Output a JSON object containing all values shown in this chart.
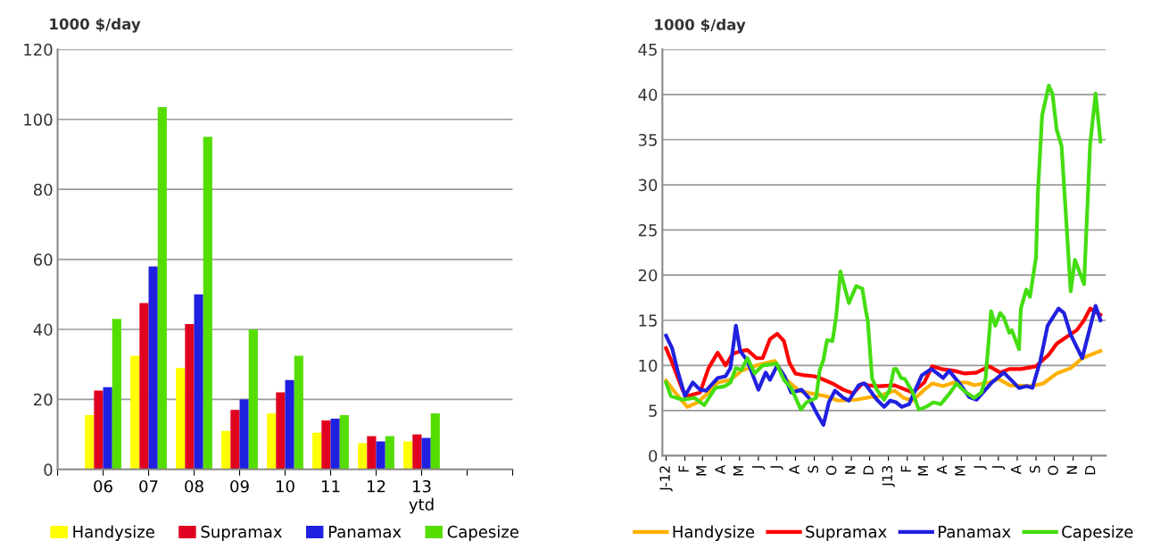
{
  "chart_data": [
    {
      "type": "bar",
      "ylabel": "1000 $/day",
      "categories": [
        "06",
        "07",
        "08",
        "09",
        "10",
        "11",
        "12",
        "13\nytd"
      ],
      "ylim": [
        0,
        120
      ],
      "yticks": [
        0,
        20,
        40,
        60,
        80,
        100,
        120
      ],
      "grid": "y",
      "legend": "bottom",
      "series": [
        {
          "name": "Handysize",
          "color": "#ffff00",
          "values": [
            15.5,
            32.5,
            29,
            11,
            16,
            10.5,
            7.5,
            8
          ]
        },
        {
          "name": "Supramax",
          "color": "#e00020",
          "values": [
            22.5,
            47.5,
            41.5,
            17,
            22,
            14,
            9.5,
            10
          ]
        },
        {
          "name": "Panamax",
          "color": "#2020e0",
          "values": [
            23.5,
            58,
            50,
            20,
            25.5,
            14.5,
            8,
            9
          ]
        },
        {
          "name": "Capesize",
          "color": "#55dd00",
          "values": [
            43,
            103.5,
            95,
            40,
            32.5,
            15.5,
            9.5,
            16
          ]
        }
      ]
    },
    {
      "type": "line",
      "ylabel": "1000 $/day",
      "xlim": [
        "2011-12-26",
        "2013-12-25"
      ],
      "xticks": [
        {
          "value": "2012-01",
          "label": "J-12"
        },
        {
          "value": "2012-02",
          "label": "F"
        },
        {
          "value": "2012-03",
          "label": "M"
        },
        {
          "value": "2012-04",
          "label": "A"
        },
        {
          "value": "2012-05",
          "label": "M"
        },
        {
          "value": "2012-06",
          "label": "J"
        },
        {
          "value": "2012-07",
          "label": "J"
        },
        {
          "value": "2012-08",
          "label": "A"
        },
        {
          "value": "2012-09",
          "label": "S"
        },
        {
          "value": "2012-10",
          "label": "O"
        },
        {
          "value": "2012-11",
          "label": "N"
        },
        {
          "value": "2012-12",
          "label": "D"
        },
        {
          "value": "2013-01",
          "label": "J13"
        },
        {
          "value": "2013-02",
          "label": "F"
        },
        {
          "value": "2013-03",
          "label": "M"
        },
        {
          "value": "2013-04",
          "label": "A"
        },
        {
          "value": "2013-05",
          "label": "M"
        },
        {
          "value": "2013-06",
          "label": "J"
        },
        {
          "value": "2013-07",
          "label": "J"
        },
        {
          "value": "2013-08",
          "label": "A"
        },
        {
          "value": "2013-09",
          "label": "S"
        },
        {
          "value": "2013-10",
          "label": "O"
        },
        {
          "value": "2013-11",
          "label": "N"
        },
        {
          "value": "2013-12",
          "label": "D"
        }
      ],
      "ylim": [
        0,
        45
      ],
      "yticks": [
        0,
        5,
        10,
        15,
        20,
        25,
        30,
        35,
        40,
        45
      ],
      "grid": "y",
      "legend": "bottom",
      "line_style": "solid",
      "series": [
        {
          "name": "Handysize",
          "color": "#ffb000",
          "x": [
            "2012-01-01",
            "2012-01-16",
            "2012-02-05",
            "2012-02-22",
            "2012-03-11",
            "2012-03-26",
            "2012-04-16",
            "2012-05-04",
            "2012-05-29",
            "2012-06-28",
            "2012-07-17",
            "2012-08-07",
            "2012-08-26",
            "2012-09-20",
            "2012-10-10",
            "2012-11-09",
            "2012-12-03",
            "2012-12-13",
            "2013-01-11",
            "2013-01-26",
            "2013-02-10",
            "2013-03-01",
            "2013-03-14",
            "2013-04-01",
            "2013-04-19",
            "2013-05-10",
            "2013-05-22",
            "2013-06-16",
            "2013-07-01",
            "2013-07-20",
            "2013-08-25",
            "2013-09-13",
            "2013-10-05",
            "2013-10-28",
            "2013-11-16",
            "2013-12-16"
          ],
          "values": [
            8.3,
            7.0,
            5.4,
            5.9,
            7.0,
            8.1,
            8.4,
            9.4,
            10.0,
            10.5,
            8.4,
            7.2,
            6.9,
            6.6,
            6.1,
            6.2,
            6.5,
            6.5,
            7.2,
            6.4,
            6.1,
            7.3,
            8.0,
            7.7,
            8.1,
            8.1,
            7.8,
            8.1,
            8.5,
            7.8,
            7.7,
            8.0,
            9.1,
            9.7,
            10.8,
            11.6
          ]
        },
        {
          "name": "Supramax",
          "color": "#ff0000",
          "x": [
            "2012-01-01",
            "2012-01-11",
            "2012-01-28",
            "2012-02-05",
            "2012-02-26",
            "2012-03-11",
            "2012-03-26",
            "2012-04-08",
            "2012-04-20",
            "2012-05-04",
            "2012-05-14",
            "2012-05-29",
            "2012-06-08",
            "2012-06-20",
            "2012-07-02",
            "2012-07-13",
            "2012-07-22",
            "2012-08-01",
            "2012-08-16",
            "2012-09-01",
            "2012-09-10",
            "2012-10-01",
            "2012-10-19",
            "2012-11-04",
            "2012-11-19",
            "2012-11-28",
            "2012-12-17",
            "2013-01-11",
            "2013-02-10",
            "2013-03-01",
            "2013-03-14",
            "2013-03-29",
            "2013-04-19",
            "2013-05-07",
            "2013-05-26",
            "2013-06-16",
            "2013-07-04",
            "2013-07-19",
            "2013-08-07",
            "2013-09-01",
            "2013-09-22",
            "2013-10-05",
            "2013-10-20",
            "2013-11-07",
            "2013-11-19",
            "2013-11-29",
            "2013-12-16"
          ],
          "values": [
            11.9,
            10.3,
            7.3,
            6.6,
            7.0,
            9.7,
            11.4,
            10.0,
            11.3,
            11.6,
            11.7,
            10.8,
            10.8,
            12.9,
            13.5,
            12.7,
            10.3,
            9.1,
            8.9,
            8.8,
            8.6,
            8.0,
            7.3,
            6.9,
            8.0,
            7.8,
            7.7,
            7.8,
            7.0,
            8.1,
            9.9,
            9.6,
            9.4,
            9.1,
            9.2,
            9.9,
            9.2,
            9.6,
            9.6,
            9.9,
            11.2,
            12.4,
            13.1,
            13.9,
            15.0,
            16.3,
            15.6
          ]
        },
        {
          "name": "Panamax",
          "color": "#2020e0",
          "x": [
            "2012-01-01",
            "2012-01-11",
            "2012-01-20",
            "2012-02-01",
            "2012-02-14",
            "2012-02-26",
            "2012-03-07",
            "2012-03-26",
            "2012-04-08",
            "2012-04-16",
            "2012-04-25",
            "2012-05-02",
            "2012-05-14",
            "2012-06-01",
            "2012-06-13",
            "2012-06-20",
            "2012-07-02",
            "2012-07-14",
            "2012-07-25",
            "2012-08-11",
            "2012-08-23",
            "2012-09-05",
            "2012-09-16",
            "2012-09-25",
            "2012-10-05",
            "2012-10-19",
            "2012-10-28",
            "2012-11-13",
            "2012-11-23",
            "2012-12-13",
            "2012-12-25",
            "2013-01-04",
            "2013-01-14",
            "2013-01-23",
            "2013-02-04",
            "2013-02-25",
            "2013-03-13",
            "2013-04-01",
            "2013-04-11",
            "2013-04-28",
            "2013-05-14",
            "2013-05-26",
            "2013-06-20",
            "2013-07-10",
            "2013-08-04",
            "2013-08-17",
            "2013-08-26",
            "2013-09-08",
            "2013-09-20",
            "2013-10-08",
            "2013-10-17",
            "2013-10-28",
            "2013-11-16",
            "2013-12-08",
            "2013-12-16"
          ],
          "values": [
            13.3,
            11.9,
            9.4,
            6.6,
            8.1,
            7.3,
            7.2,
            8.6,
            8.8,
            9.7,
            14.4,
            11.6,
            10.5,
            7.3,
            9.2,
            8.4,
            10.0,
            8.8,
            7.0,
            7.3,
            6.4,
            4.7,
            3.4,
            5.9,
            7.2,
            6.4,
            6.1,
            7.8,
            8.0,
            6.2,
            5.4,
            6.1,
            5.9,
            5.4,
            5.7,
            8.9,
            9.6,
            8.6,
            9.4,
            8.0,
            6.5,
            6.2,
            8.1,
            9.2,
            7.5,
            7.7,
            7.5,
            10.5,
            14.4,
            16.3,
            15.8,
            13.4,
            10.8,
            16.6,
            15.0
          ]
        },
        {
          "name": "Capesize",
          "color": "#44dd11",
          "x": [
            "2012-01-01",
            "2012-01-09",
            "2012-01-28",
            "2012-02-17",
            "2012-03-04",
            "2012-03-22",
            "2012-04-07",
            "2012-04-16",
            "2012-04-25",
            "2012-05-04",
            "2012-05-14",
            "2012-05-26",
            "2012-06-08",
            "2012-07-01",
            "2012-07-13",
            "2012-07-25",
            "2012-08-10",
            "2012-08-19",
            "2012-09-04",
            "2012-09-10",
            "2012-09-16",
            "2012-09-22",
            "2012-10-01",
            "2012-10-07",
            "2012-10-14",
            "2012-10-28",
            "2012-11-09",
            "2012-11-19",
            "2012-11-25",
            "2012-11-28",
            "2012-12-05",
            "2012-12-13",
            "2012-12-25",
            "2013-01-03",
            "2013-01-10",
            "2013-01-14",
            "2013-01-22",
            "2013-01-28",
            "2013-02-10",
            "2013-02-20",
            "2013-03-04",
            "2013-03-16",
            "2013-03-28",
            "2013-04-13",
            "2013-04-23",
            "2013-05-05",
            "2013-05-22",
            "2013-06-03",
            "2013-06-10",
            "2013-06-19",
            "2013-06-26",
            "2013-07-04",
            "2013-07-10",
            "2013-07-19",
            "2013-07-23",
            "2013-08-04",
            "2013-08-07",
            "2013-08-16",
            "2013-08-22",
            "2013-09-01",
            "2013-09-04",
            "2013-09-11",
            "2013-09-22",
            "2013-09-28",
            "2013-10-05",
            "2013-10-13",
            "2013-10-28",
            "2013-11-04",
            "2013-11-19",
            "2013-11-29",
            "2013-12-08",
            "2013-12-16"
          ],
          "values": [
            8.1,
            6.6,
            6.2,
            6.4,
            5.6,
            7.5,
            7.7,
            8.1,
            9.7,
            9.5,
            10.8,
            9.1,
            10.0,
            10.2,
            8.4,
            7.5,
            5.1,
            5.9,
            6.4,
            9.5,
            10.6,
            12.8,
            12.7,
            15.4,
            20.4,
            16.9,
            18.8,
            18.5,
            16.0,
            15.0,
            8.6,
            7.3,
            6.2,
            7.3,
            9.6,
            9.6,
            8.6,
            8.5,
            7.0,
            5.1,
            5.4,
            5.9,
            5.7,
            7.0,
            8.0,
            7.2,
            6.4,
            7.0,
            8.6,
            16.0,
            14.4,
            15.8,
            15.3,
            13.6,
            13.9,
            11.8,
            16.3,
            18.4,
            17.6,
            22.0,
            29.1,
            37.7,
            41.0,
            40.1,
            36.1,
            34.3,
            18.2,
            21.7,
            19.0,
            34.5,
            40.1,
            34.8
          ]
        }
      ]
    }
  ]
}
